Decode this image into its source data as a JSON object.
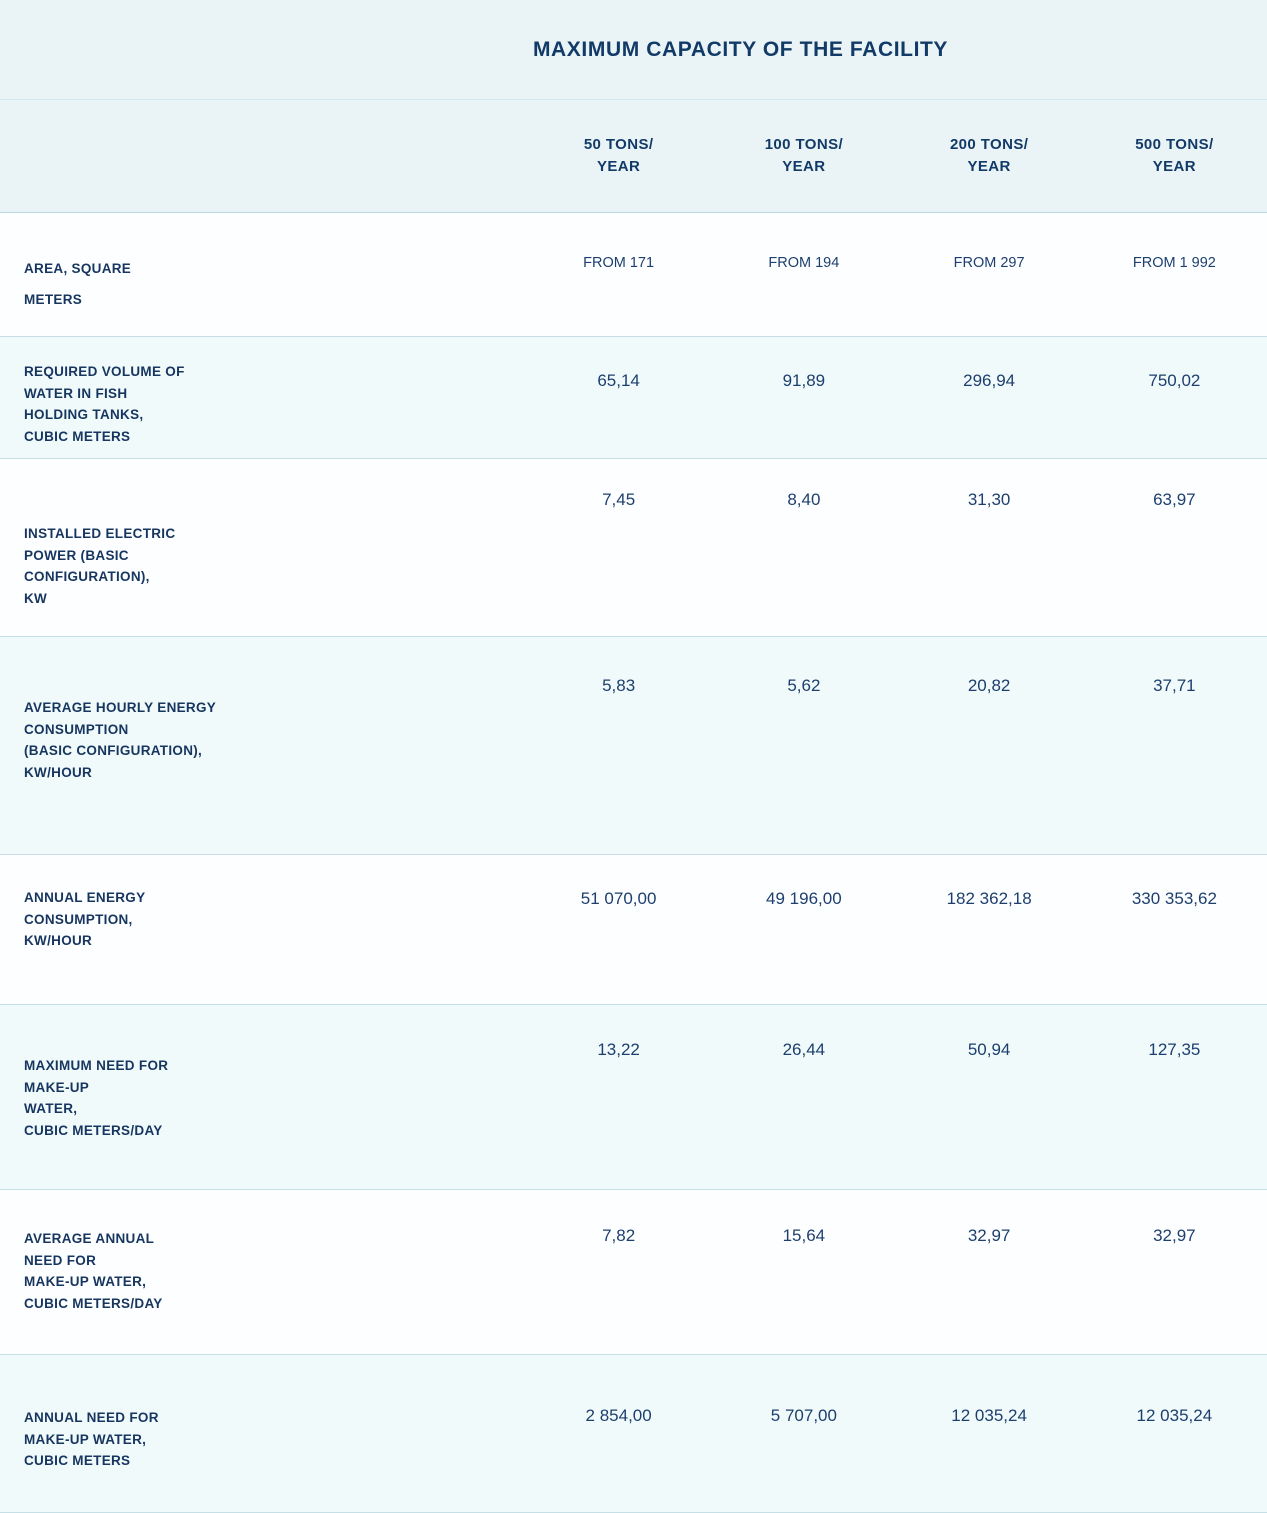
{
  "title": "MAXIMUM CAPACITY OF THE FACILITY",
  "colors": {
    "text_navy": "#16355f",
    "header_band": "#eaf4f7",
    "row_tint": "#f0fafb",
    "divider": "#c6dfe7"
  },
  "table": {
    "columns": [
      "50 TONS/\nYEAR",
      "100 TONS/\nYEAR",
      "200 TONS/\nYEAR",
      "500 TONS/\nYEAR"
    ],
    "rows": [
      {
        "label": "AREA, SQUARE\nMETERS",
        "values": [
          "FROM 171",
          "FROM 194",
          "FROM 297",
          "FROM 1 992"
        ]
      },
      {
        "label": "REQUIRED VOLUME OF\nWATER IN FISH\nHOLDING TANKS,\nCUBIC METERS",
        "values": [
          "65,14",
          "91,89",
          "296,94",
          "750,02"
        ]
      },
      {
        "label": "INSTALLED ELECTRIC\nPOWER (BASIC\nCONFIGURATION),\nKW",
        "values": [
          "7,45",
          "8,40",
          "31,30",
          "63,97"
        ]
      },
      {
        "label": "AVERAGE HOURLY ENERGY\nCONSUMPTION\n(BASIC CONFIGURATION),\nKW/HOUR",
        "values": [
          "5,83",
          "5,62",
          "20,82",
          "37,71"
        ]
      },
      {
        "label": "ANNUAL ENERGY\nCONSUMPTION,\nKW/HOUR",
        "values": [
          "51 070,00",
          "49 196,00",
          "182 362,18",
          "330 353,62"
        ]
      },
      {
        "label": "MAXIMUM NEED FOR\nMAKE-UP\nWATER,\nCUBIC METERS/DAY",
        "values": [
          "13,22",
          "26,44",
          "50,94",
          "127,35"
        ]
      },
      {
        "label": "AVERAGE ANNUAL\nNEED FOR\nMAKE-UP WATER,\nCUBIC METERS/DAY",
        "values": [
          "7,82",
          "15,64",
          "32,97",
          "32,97"
        ]
      },
      {
        "label": "ANNUAL NEED FOR\nMAKE-UP WATER,\nCUBIC METERS",
        "values": [
          "2 854,00",
          "5 707,00",
          "12 035,24",
          "12 035,24"
        ]
      }
    ]
  }
}
